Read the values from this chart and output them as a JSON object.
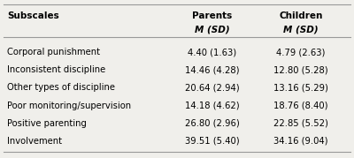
{
  "col_headers": [
    "Subscales",
    "Parents",
    "Children"
  ],
  "col_subheaders": [
    "",
    "M (SD)",
    "M (SD)"
  ],
  "rows": [
    [
      "Corporal punishment",
      "4.40 (1.63)",
      "4.79 (2.63)"
    ],
    [
      "Inconsistent discipline",
      "14.46 (4.28)",
      "12.80 (5.28)"
    ],
    [
      "Other types of discipline",
      "20.64 (2.94)",
      "13.16 (5.29)"
    ],
    [
      "Poor monitoring/supervision",
      "14.18 (4.62)",
      "18.76 (8.40)"
    ],
    [
      "Positive parenting",
      "26.80 (2.96)",
      "22.85 (5.52)"
    ],
    [
      "Involvement",
      "39.51 (5.40)",
      "34.16 (9.04)"
    ]
  ],
  "background_color": "#f0efeb",
  "line_color": "#999999",
  "header_fontsize": 7.5,
  "subheader_fontsize": 7.5,
  "data_fontsize": 7.2,
  "fig_width": 4.0,
  "fig_height": 1.79
}
